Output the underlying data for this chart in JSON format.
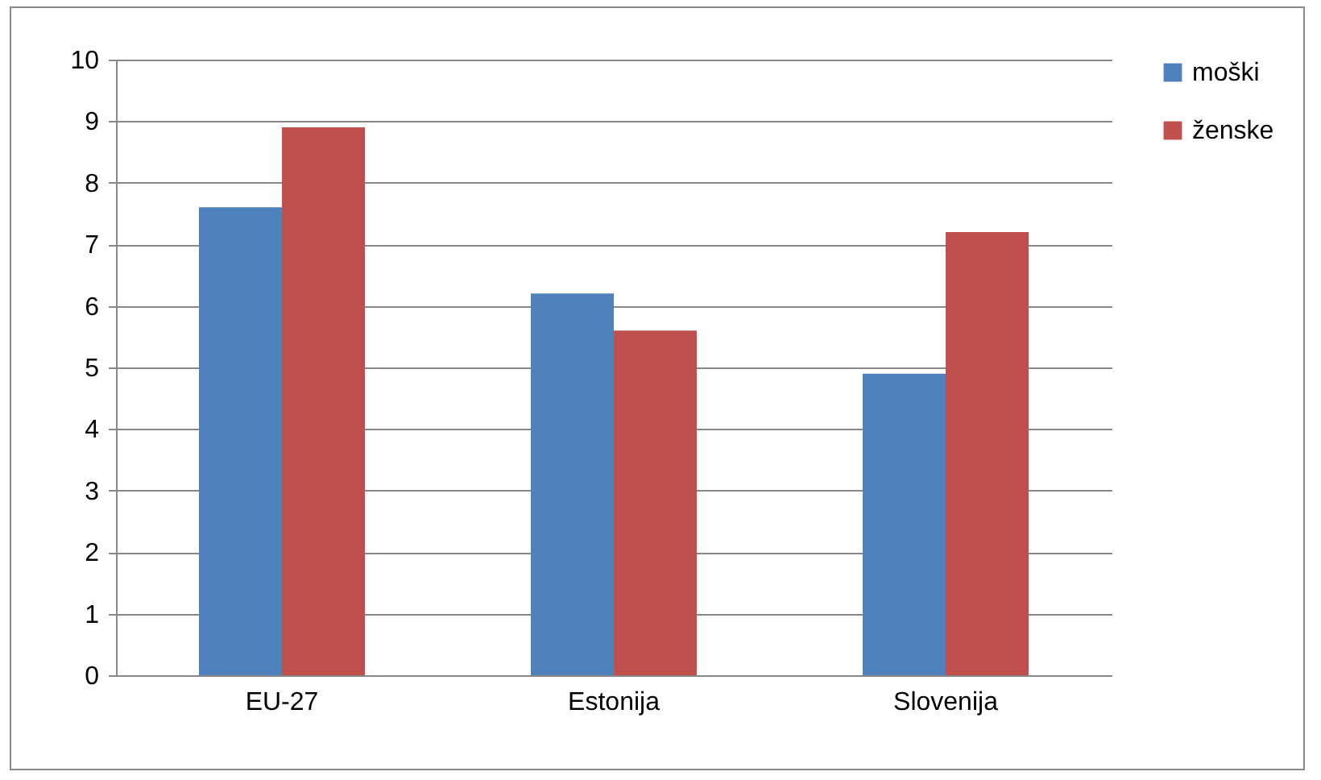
{
  "chart_data": {
    "type": "bar",
    "categories": [
      "EU-27",
      "Estonija",
      "Slovenija"
    ],
    "series": [
      {
        "name": "moški",
        "color": "#4f81bd",
        "values": [
          7.6,
          6.2,
          4.9
        ]
      },
      {
        "name": "ženske",
        "color": "#c0504d",
        "values": [
          8.9,
          5.6,
          7.2
        ]
      }
    ],
    "ylim": [
      0,
      10
    ],
    "yticks": [
      0,
      1,
      2,
      3,
      4,
      5,
      6,
      7,
      8,
      9,
      10
    ],
    "grid": "y",
    "legend": "right"
  }
}
